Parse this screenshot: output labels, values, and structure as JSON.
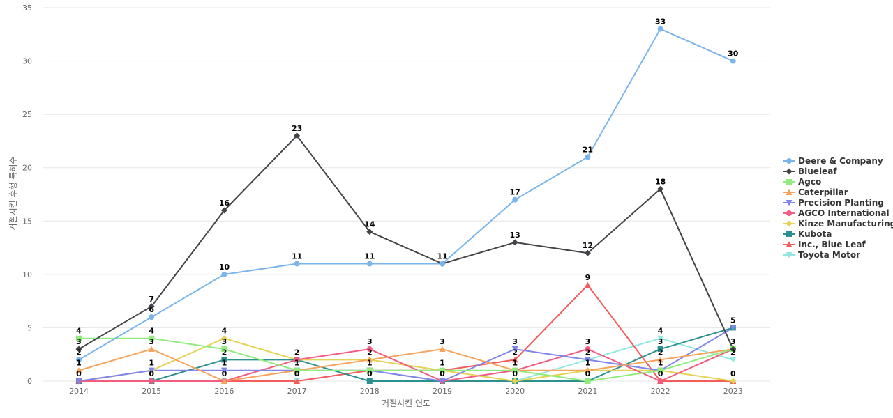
{
  "chart_data": {
    "type": "line",
    "xlabel": "거절시킨 연도",
    "ylabel": "거절시킨 후행 특허수",
    "x": [
      "2014",
      "2015",
      "2016",
      "2017",
      "2018",
      "2019",
      "2020",
      "2021",
      "2022",
      "2023"
    ],
    "ylim": [
      0,
      35
    ],
    "yticks": [
      "0",
      "5",
      "10",
      "15",
      "20",
      "25",
      "30",
      "35"
    ],
    "grid": true,
    "legend_position": "right",
    "series": [
      {
        "name": "Deere & Company",
        "color": "#7cb5ec",
        "marker": "circle",
        "values": [
          2,
          6,
          10,
          11,
          11,
          11,
          17,
          21,
          33,
          30
        ]
      },
      {
        "name": "Blueleaf",
        "color": "#434348",
        "marker": "diamond",
        "values": [
          3,
          7,
          16,
          23,
          14,
          11,
          13,
          12,
          18,
          3
        ]
      },
      {
        "name": "Agco",
        "color": "#90ed7d",
        "marker": "square",
        "values": [
          4,
          4,
          3,
          1,
          1,
          1,
          1,
          0,
          1,
          3
        ]
      },
      {
        "name": "Caterpillar",
        "color": "#f7a35c",
        "marker": "triangle",
        "values": [
          1,
          3,
          0,
          1,
          2,
          3,
          1,
          1,
          2,
          3
        ]
      },
      {
        "name": "Precision Planting",
        "color": "#8085e9",
        "marker": "triangle-down",
        "values": [
          0,
          1,
          1,
          1,
          1,
          0,
          3,
          2,
          1,
          5
        ]
      },
      {
        "name": "AGCO International",
        "color": "#f15c80",
        "marker": "circle",
        "values": [
          0,
          0,
          0,
          2,
          3,
          0,
          1,
          3,
          0,
          3
        ]
      },
      {
        "name": "Kinze Manufacturing",
        "color": "#e4d354",
        "marker": "diamond",
        "values": [
          0,
          1,
          4,
          2,
          2,
          1,
          0,
          1,
          1,
          0
        ]
      },
      {
        "name": "Kubota",
        "color": "#2b908f",
        "marker": "square",
        "values": [
          0,
          0,
          2,
          2,
          0,
          0,
          0,
          0,
          3,
          5
        ]
      },
      {
        "name": "Inc., Blue Leaf",
        "color": "#f45b5b",
        "marker": "triangle",
        "values": [
          0,
          0,
          0,
          0,
          1,
          1,
          2,
          9,
          0,
          0
        ]
      },
      {
        "name": "Toyota Motor",
        "color": "#91e8e1",
        "marker": "triangle-down",
        "values": [
          0,
          0,
          0,
          0,
          1,
          0,
          0,
          2,
          4,
          2
        ]
      }
    ],
    "data_labels": [
      {
        "xi": 0,
        "text": "4",
        "v": 4
      },
      {
        "xi": 0,
        "text": "3",
        "v": 3
      },
      {
        "xi": 0,
        "text": "2",
        "v": 2
      },
      {
        "xi": 0,
        "text": "1",
        "v": 1
      },
      {
        "xi": 0,
        "text": "0",
        "v": 0
      },
      {
        "xi": 1,
        "text": "7",
        "v": 7
      },
      {
        "xi": 1,
        "text": "6",
        "v": 6
      },
      {
        "xi": 1,
        "text": "4",
        "v": 4
      },
      {
        "xi": 1,
        "text": "3",
        "v": 3
      },
      {
        "xi": 1,
        "text": "1",
        "v": 1
      },
      {
        "xi": 1,
        "text": "0",
        "v": 0
      },
      {
        "xi": 2,
        "text": "16",
        "v": 16
      },
      {
        "xi": 2,
        "text": "10",
        "v": 10
      },
      {
        "xi": 2,
        "text": "4",
        "v": 4
      },
      {
        "xi": 2,
        "text": "3",
        "v": 3
      },
      {
        "xi": 2,
        "text": "2",
        "v": 2
      },
      {
        "xi": 2,
        "text": "1",
        "v": 1
      },
      {
        "xi": 2,
        "text": "0",
        "v": 0
      },
      {
        "xi": 3,
        "text": "23",
        "v": 23
      },
      {
        "xi": 3,
        "text": "11",
        "v": 11
      },
      {
        "xi": 3,
        "text": "2",
        "v": 2
      },
      {
        "xi": 3,
        "text": "1",
        "v": 1
      },
      {
        "xi": 3,
        "text": "0",
        "v": 0
      },
      {
        "xi": 4,
        "text": "14",
        "v": 14
      },
      {
        "xi": 4,
        "text": "11",
        "v": 11
      },
      {
        "xi": 4,
        "text": "3",
        "v": 3
      },
      {
        "xi": 4,
        "text": "2",
        "v": 2
      },
      {
        "xi": 4,
        "text": "1",
        "v": 1
      },
      {
        "xi": 4,
        "text": "0",
        "v": 0
      },
      {
        "xi": 5,
        "text": "11",
        "v": 11
      },
      {
        "xi": 5,
        "text": "3",
        "v": 3
      },
      {
        "xi": 5,
        "text": "1",
        "v": 1
      },
      {
        "xi": 5,
        "text": "0",
        "v": 0
      },
      {
        "xi": 6,
        "text": "17",
        "v": 17
      },
      {
        "xi": 6,
        "text": "13",
        "v": 13
      },
      {
        "xi": 6,
        "text": "3",
        "v": 3
      },
      {
        "xi": 6,
        "text": "2",
        "v": 2
      },
      {
        "xi": 6,
        "text": "1",
        "v": 1
      },
      {
        "xi": 6,
        "text": "0",
        "v": 0
      },
      {
        "xi": 7,
        "text": "21",
        "v": 21
      },
      {
        "xi": 7,
        "text": "12",
        "v": 12
      },
      {
        "xi": 7,
        "text": "9",
        "v": 9
      },
      {
        "xi": 7,
        "text": "3",
        "v": 3
      },
      {
        "xi": 7,
        "text": "2",
        "v": 2
      },
      {
        "xi": 7,
        "text": "1",
        "v": 1
      },
      {
        "xi": 7,
        "text": "0",
        "v": 0
      },
      {
        "xi": 8,
        "text": "33",
        "v": 33
      },
      {
        "xi": 8,
        "text": "18",
        "v": 18
      },
      {
        "xi": 8,
        "text": "4",
        "v": 4
      },
      {
        "xi": 8,
        "text": "3",
        "v": 3
      },
      {
        "xi": 8,
        "text": "2",
        "v": 2
      },
      {
        "xi": 8,
        "text": "1",
        "v": 1
      },
      {
        "xi": 8,
        "text": "0",
        "v": 0
      },
      {
        "xi": 9,
        "text": "30",
        "v": 30
      },
      {
        "xi": 9,
        "text": "5",
        "v": 5
      },
      {
        "xi": 9,
        "text": "3",
        "v": 3
      },
      {
        "xi": 9,
        "text": "2",
        "v": 2
      },
      {
        "xi": 9,
        "text": "0",
        "v": 0
      }
    ]
  }
}
